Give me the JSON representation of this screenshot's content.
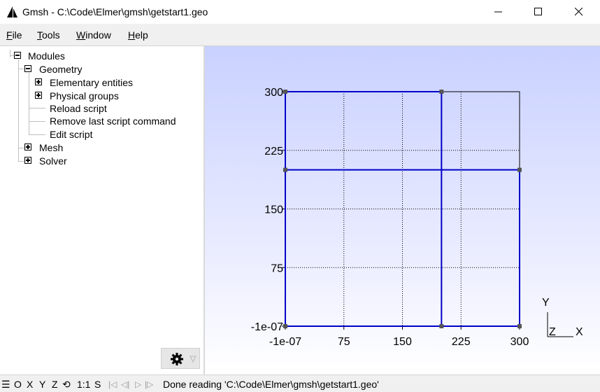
{
  "window": {
    "title": "Gmsh - C:\\Code\\Elmer\\gmsh\\getstart1.geo"
  },
  "menu": [
    {
      "label": "File",
      "mnemonic": "F",
      "rest": "ile"
    },
    {
      "label": "Tools",
      "mnemonic": "T",
      "rest": "ools"
    },
    {
      "label": "Window",
      "mnemonic": "W",
      "rest": "indow"
    },
    {
      "label": "Help",
      "mnemonic": "H",
      "rest": "elp"
    }
  ],
  "tree": {
    "modules": "Modules",
    "geometry": "Geometry",
    "elementary": "Elementary entities",
    "physical": "Physical groups",
    "reload": "Reload script",
    "remove": "Remove last script command",
    "edit": "Edit script",
    "mesh": "Mesh",
    "solver": "Solver"
  },
  "gear_icon": "gear-icon",
  "plot": {
    "x_ticks": [
      "-1e-07",
      "75",
      "150",
      "225",
      "300"
    ],
    "y_ticks": [
      "300",
      "225",
      "150",
      "75",
      "-1e-07"
    ],
    "axis_y": "Y",
    "axis_z": "Z",
    "axis_x": "X",
    "line_color": "#0000c8",
    "frame_color": "#000000",
    "points": [
      {
        "x": 0,
        "y": 0
      },
      {
        "x": 200,
        "y": 0
      },
      {
        "x": 300,
        "y": 0
      },
      {
        "x": 0,
        "y": 200
      },
      {
        "x": 300,
        "y": 200
      },
      {
        "x": 0,
        "y": 300
      },
      {
        "x": 200,
        "y": 300
      }
    ],
    "lines": [
      [
        [
          0,
          0
        ],
        [
          200,
          0
        ]
      ],
      [
        [
          200,
          0
        ],
        [
          300,
          0
        ]
      ],
      [
        [
          300,
          0
        ],
        [
          300,
          200
        ]
      ],
      [
        [
          300,
          200
        ],
        [
          0,
          200
        ]
      ],
      [
        [
          0,
          200
        ],
        [
          0,
          0
        ]
      ],
      [
        [
          0,
          200
        ],
        [
          0,
          300
        ]
      ],
      [
        [
          0,
          300
        ],
        [
          200,
          300
        ]
      ],
      [
        [
          200,
          300
        ],
        [
          200,
          0
        ]
      ]
    ]
  },
  "status": {
    "buttons": [
      "☰",
      "O",
      "X",
      "Y",
      "Z",
      "⟲",
      "1:1",
      "S"
    ],
    "nav_icons": [
      "|◁",
      "◁|",
      "▷",
      "|▷"
    ],
    "message": "Done reading 'C:\\Code\\Elmer\\gmsh\\getstart1.geo'"
  }
}
